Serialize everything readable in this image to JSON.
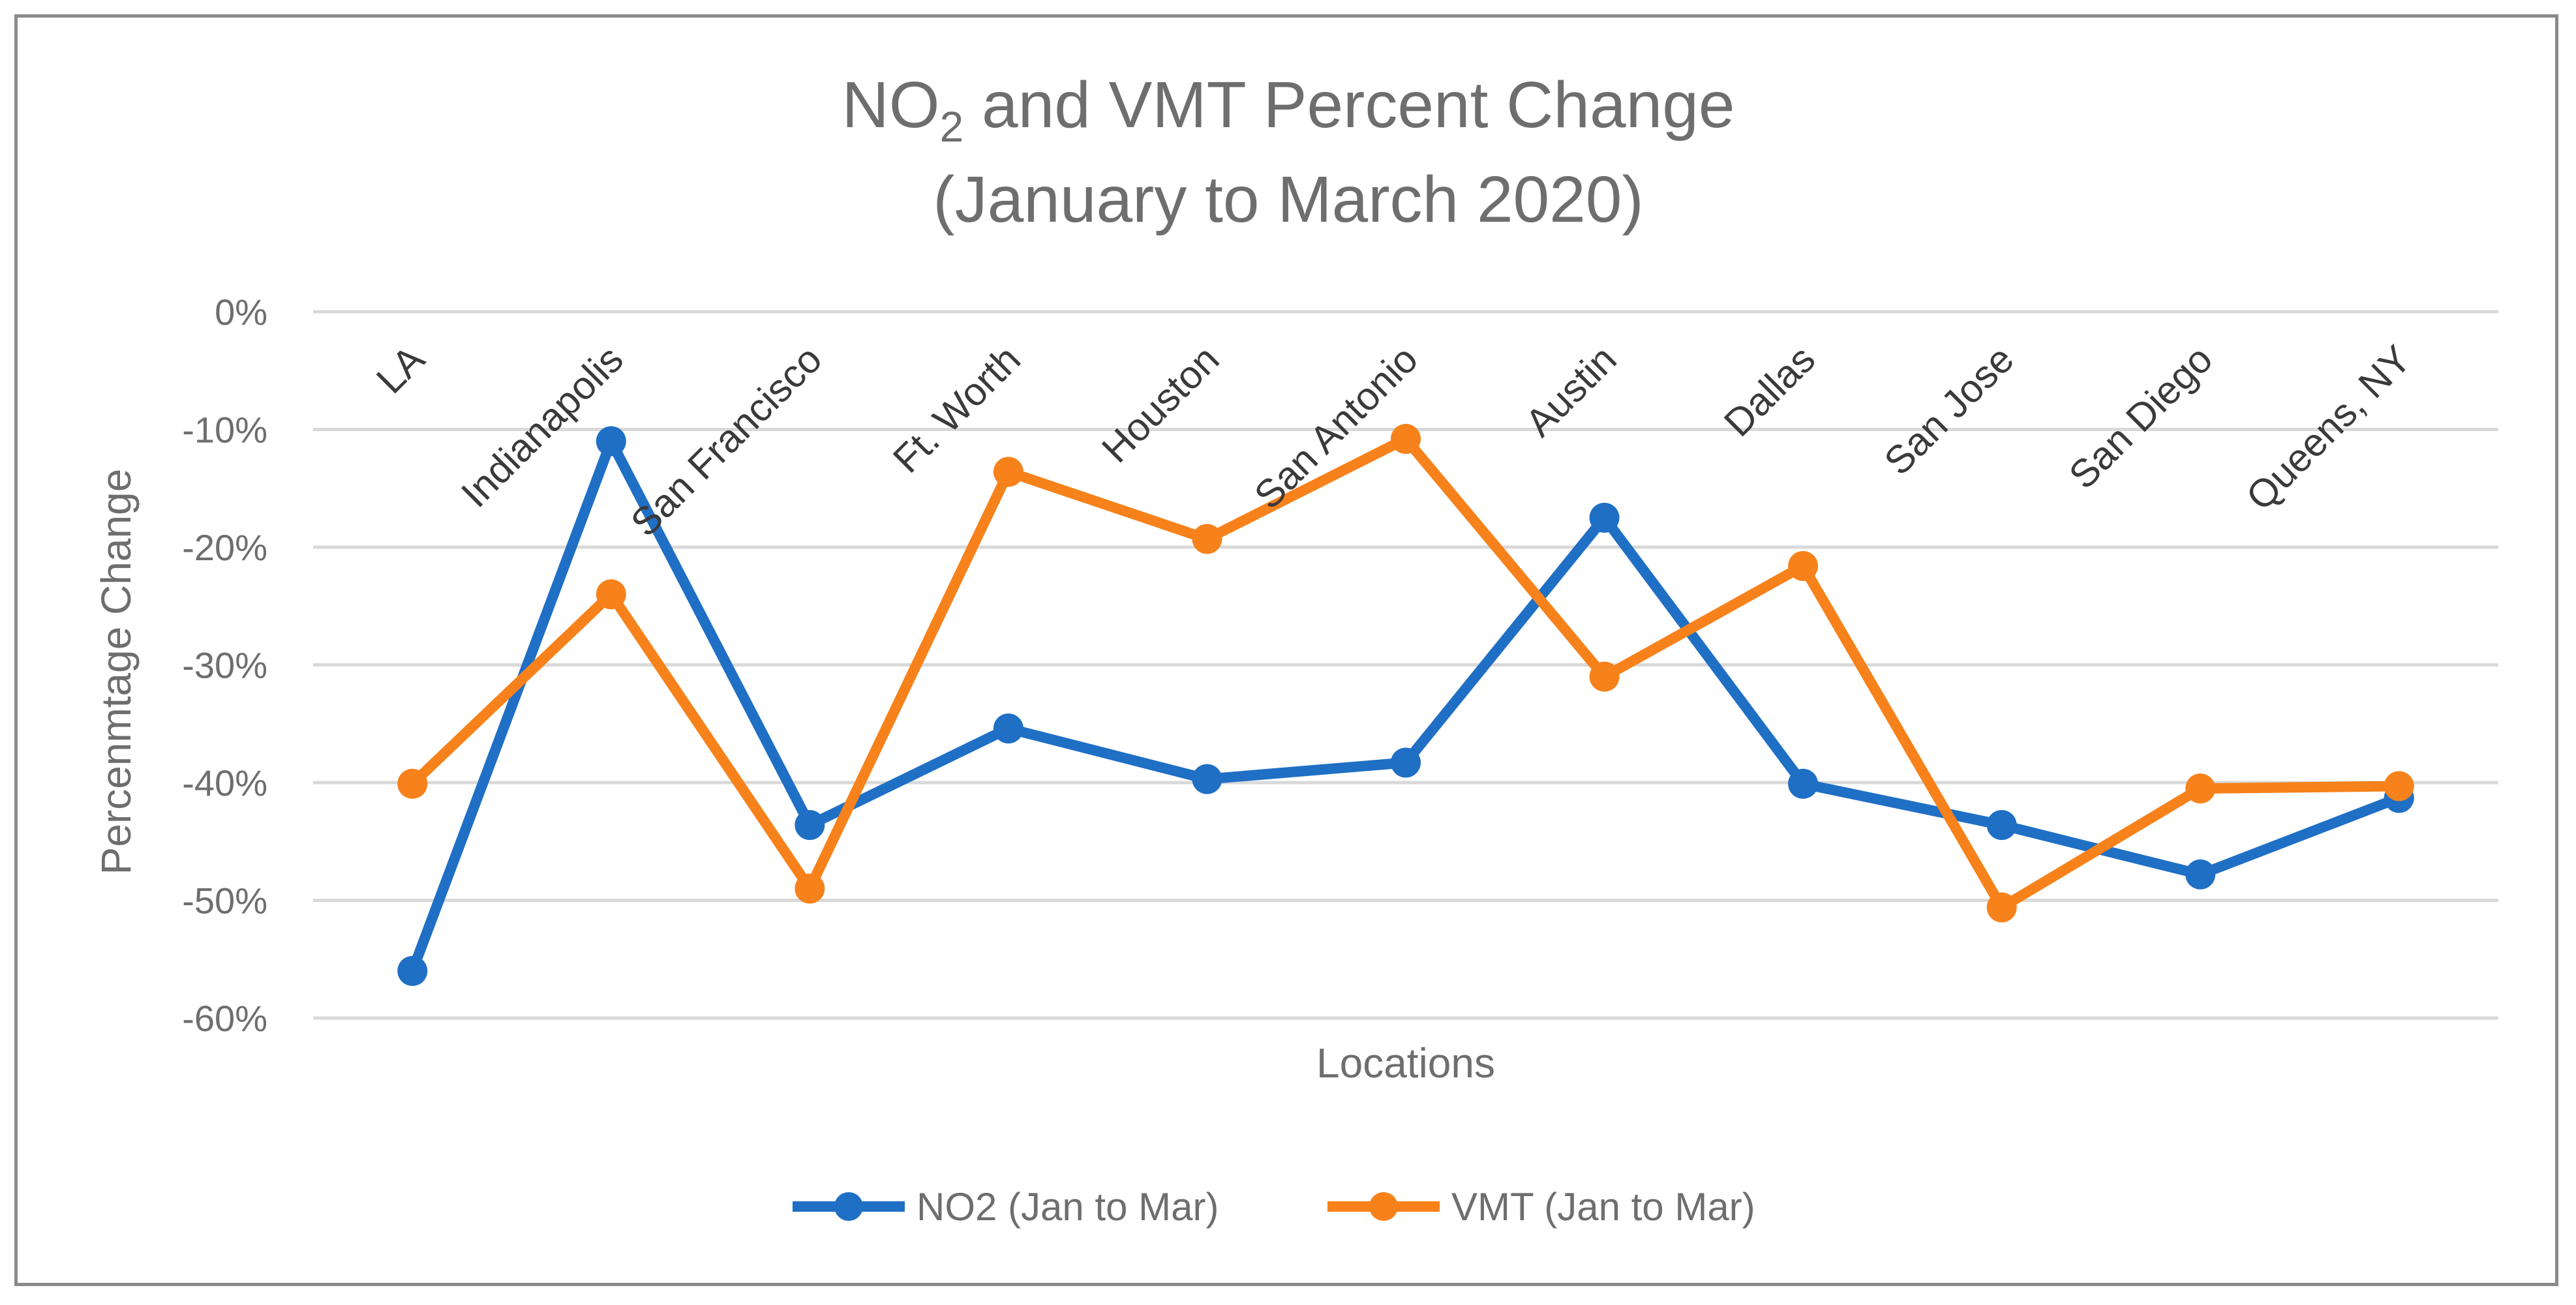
{
  "chart_data": {
    "type": "line",
    "title_main": "NO",
    "title_sub": "2",
    "title_rest": " and VMT Percent Change",
    "title_line2": "(January to March 2020)",
    "xlabel": "Locations",
    "ylabel": "Percenmtage Change",
    "ylim": [
      -60,
      0
    ],
    "yticks": [
      0,
      -10,
      -20,
      -30,
      -40,
      -50,
      -60
    ],
    "ytick_labels": [
      "0%",
      "-10%",
      "-20%",
      "-30%",
      "-40%",
      "-50%",
      "-60%"
    ],
    "categories": [
      "LA",
      "Indianapolis",
      "San Francisco",
      "Ft. Worth",
      "Houston",
      "San Antonio",
      "Austin",
      "Dallas",
      "San Jose",
      "San Diego",
      "Queens, NY"
    ],
    "series": [
      {
        "name": "NO2 (Jan to Mar)",
        "color": "#1f6fc5",
        "values": [
          -56,
          -11,
          -43.6,
          -35.4,
          -39.7,
          -38.3,
          -17.5,
          -40.1,
          -43.6,
          -47.8,
          -41.3
        ]
      },
      {
        "name": "VMT (Jan to Mar)",
        "color": "#f7821b",
        "values": [
          -40.1,
          -24,
          -49,
          -13.6,
          -19.3,
          -10.8,
          -31,
          -21.6,
          -50.6,
          -40.5,
          -40.3
        ]
      }
    ],
    "grid": true,
    "legend_position": "bottom"
  }
}
